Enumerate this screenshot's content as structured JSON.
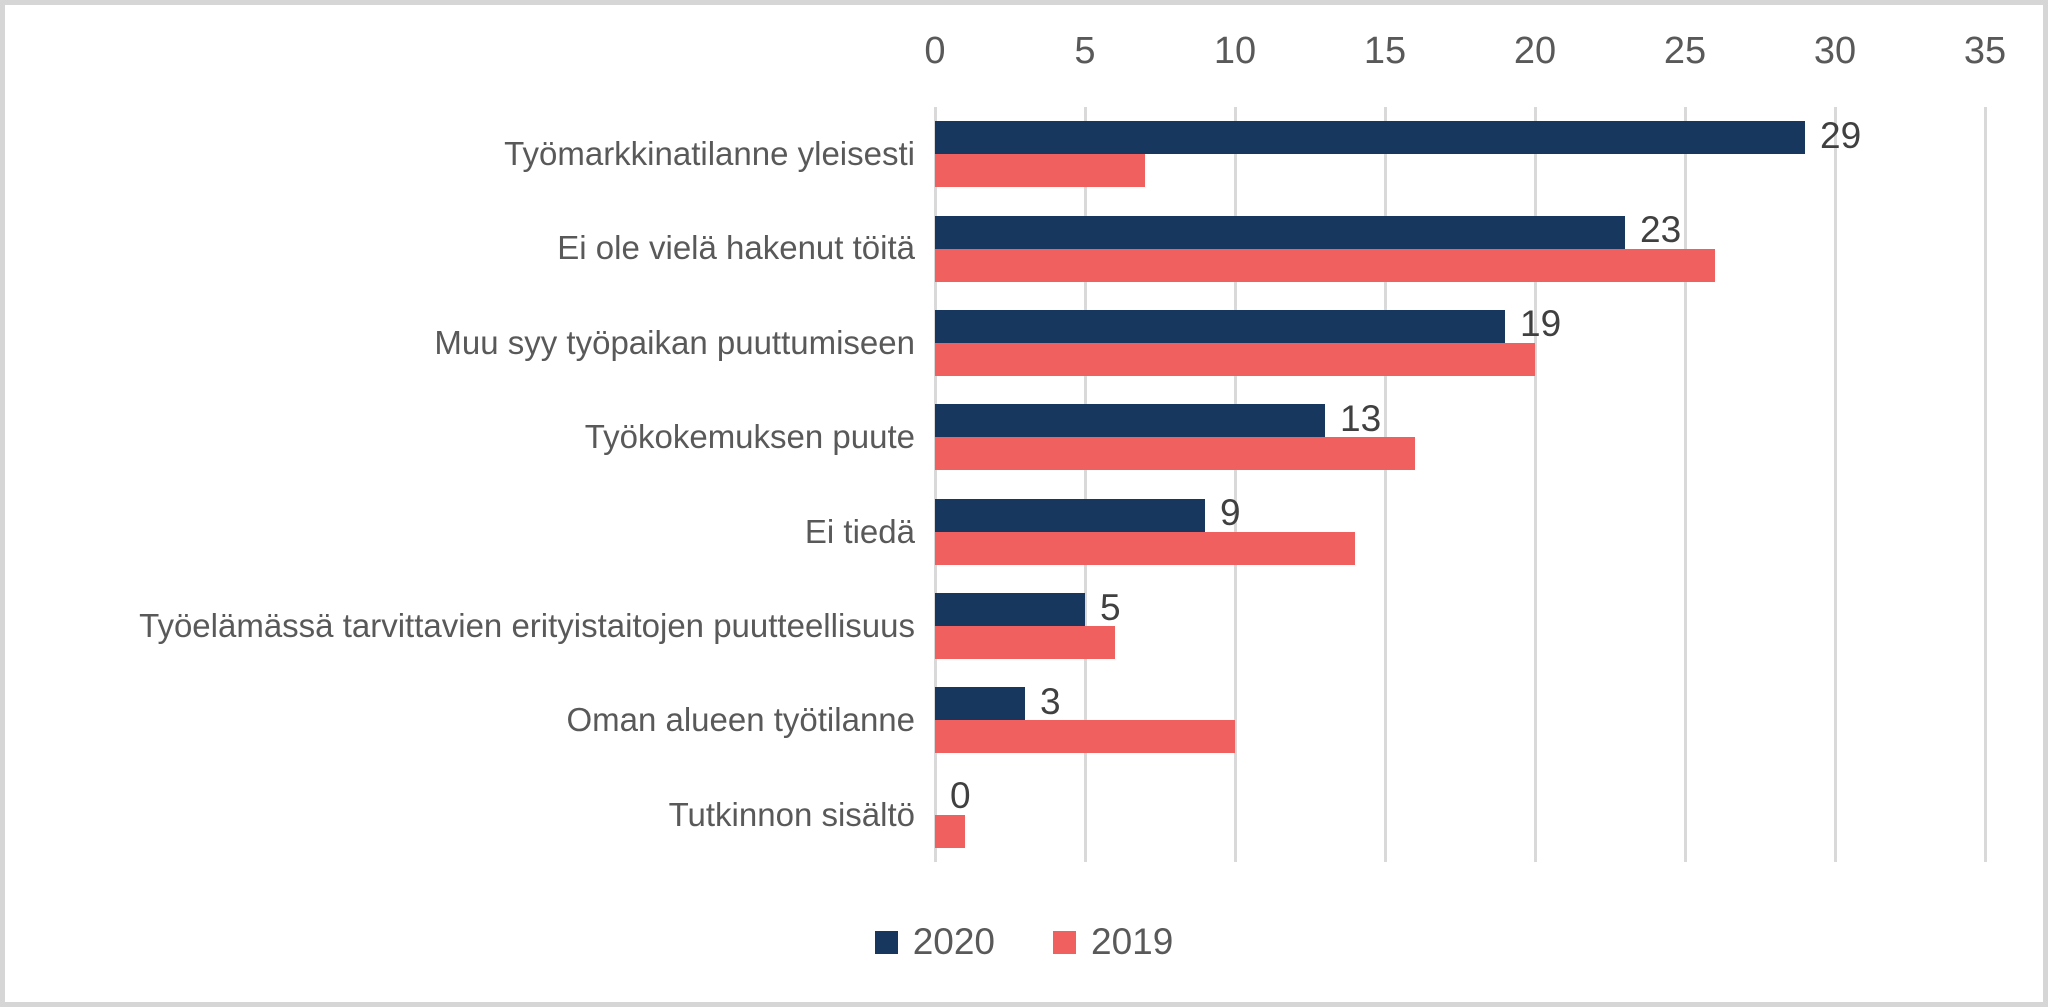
{
  "chart_data": {
    "type": "bar",
    "orientation": "horizontal",
    "title": "",
    "xlabel": "",
    "ylabel": "",
    "categories": [
      "Työmarkkinatilanne yleisesti",
      "Ei ole vielä hakenut töitä",
      "Muu syy työpaikan puuttumiseen",
      "Työkokemuksen puute",
      "Ei tiedä",
      "Työelämässä tarvittavien erityistaitojen puutteellisuus",
      "Oman alueen työtilanne",
      "Tutkinnon sisältö"
    ],
    "series": [
      {
        "name": "2020",
        "color": "#17375e",
        "values": [
          29,
          23,
          19,
          13,
          9,
          5,
          3,
          0
        ],
        "data_labels": true
      },
      {
        "name": "2019",
        "color": "#f0605e",
        "values": [
          7,
          26,
          20,
          16,
          14,
          6,
          10,
          1
        ],
        "data_labels": false
      }
    ],
    "xlim": [
      0,
      35
    ],
    "ticks": [
      0,
      5,
      10,
      15,
      20,
      25,
      30,
      35
    ],
    "tick_labels": [
      "0",
      "5",
      "10",
      "15",
      "20",
      "25",
      "30",
      "35"
    ],
    "grid": "vertical-only",
    "gridline_color": "#d9d9d9",
    "axis_text_color": "#595959",
    "data_label_color": "#404040",
    "legend_position": "bottom-center",
    "axis_position": "top"
  }
}
